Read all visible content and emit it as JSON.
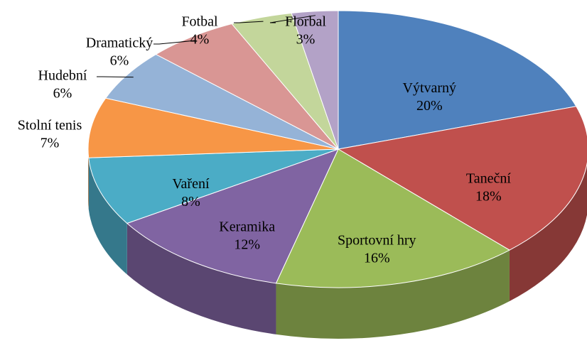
{
  "chart_data": {
    "type": "pie3d",
    "categories": [
      "Výtvarný",
      "Taneční",
      "Sportovní hry",
      "Keramika",
      "Vaření",
      "Stolní tenis",
      "Hudební",
      "Dramatický",
      "Fotbal",
      "Florbal"
    ],
    "values": [
      20,
      18,
      16,
      12,
      8,
      7,
      6,
      6,
      4,
      3
    ],
    "value_labels": [
      "20%",
      "18%",
      "16%",
      "12%",
      "8%",
      "7%",
      "6%",
      "6%",
      "4%",
      "3%"
    ],
    "colors": [
      "#4f81bd",
      "#c0504d",
      "#9bbb59",
      "#8064a2",
      "#4bacc6",
      "#f79646",
      "#95b3d7",
      "#d99694",
      "#c3d69b",
      "#b3a2c7"
    ]
  }
}
